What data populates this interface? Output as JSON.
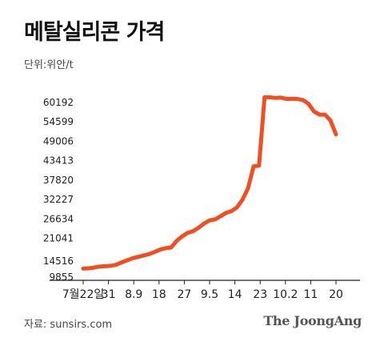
{
  "title": "메탈실리콘 가격",
  "unit_label": "단위:위안/t",
  "source": "자료: sunsirs.com",
  "brand": "The JoongAng",
  "colors": {
    "line": "#f04e23",
    "axis": "#222222",
    "text": "#222222"
  },
  "chart_data": {
    "type": "line",
    "title": "메탈실리콘 가격",
    "ylabel": "단위:위안/t",
    "y_ticks": [
      9855,
      14516,
      21041,
      26634,
      32227,
      37820,
      43413,
      49006,
      54599,
      60192
    ],
    "x_ticks": [
      "7월22일",
      "31",
      "8.9",
      "18",
      "27",
      "9.5",
      "14",
      "23",
      "10.2",
      "11",
      "20"
    ],
    "series": [
      {
        "values": [
          12300,
          12400,
          12600,
          12900,
          13000,
          13100,
          13400,
          14100,
          14700,
          15300,
          15700,
          16100,
          16500,
          17100,
          17800,
          18200,
          18400,
          20300,
          21600,
          22600,
          23100,
          24100,
          25300,
          26200,
          26500,
          27400,
          28400,
          28900,
          30000,
          32200,
          35500,
          41800,
          42000,
          61700,
          61700,
          61500,
          61600,
          61200,
          61300,
          61200,
          60900,
          59800,
          57600,
          56700,
          56700,
          55000,
          51000
        ]
      }
    ]
  }
}
